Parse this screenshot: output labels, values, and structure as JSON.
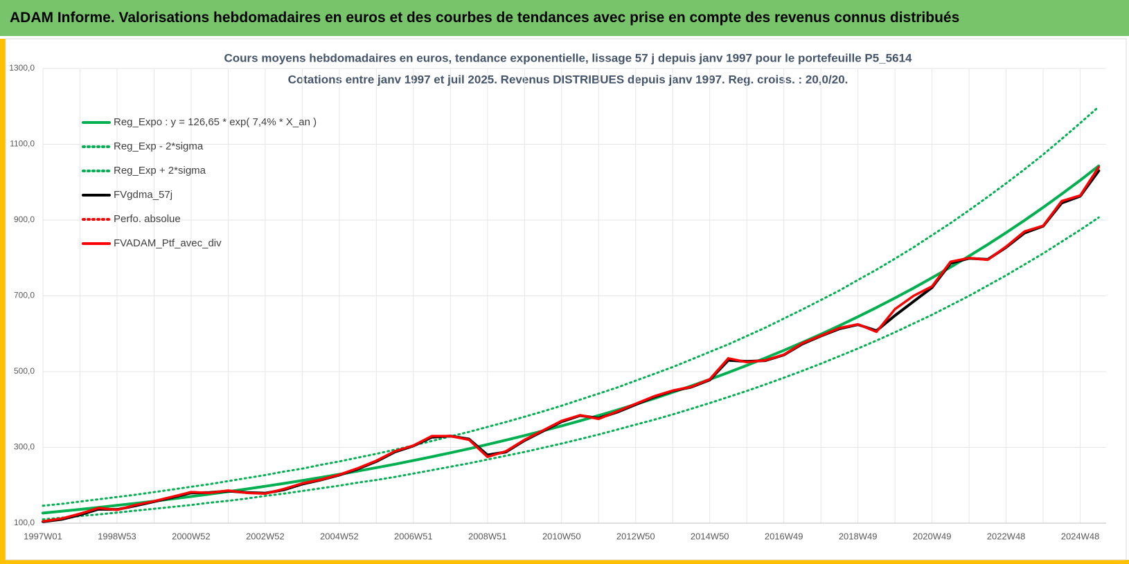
{
  "header": {
    "title": "ADAM Informe. Valorisations hebdomadaires en euros et des courbes de tendances avec prise en compte des revenus connus distribués"
  },
  "chart_data": {
    "type": "line",
    "title": "Cours moyens hebdomadaires  en euros, tendance exponentielle, lissage 57 j depuis janv 1997 pour le portefeuille P5_5614",
    "subtitle": "Cotations entre janv 1997 et juil 2025. Revenus DISTRIBUES depuis janv 1997. Reg. croiss. : 20,0/20.",
    "categories": [
      "1997W01",
      null,
      null,
      null,
      "1998W53",
      null,
      null,
      null,
      "2000W52",
      null,
      null,
      null,
      "2002W52",
      null,
      null,
      null,
      "2004W52",
      null,
      null,
      null,
      "2006W51",
      null,
      null,
      null,
      "2008W51",
      null,
      null,
      null,
      "2010W50",
      null,
      null,
      null,
      "2012W50",
      null,
      null,
      null,
      "2014W50",
      null,
      null,
      null,
      "2016W49",
      null,
      null,
      null,
      "2018W49",
      null,
      null,
      null,
      "2020W49",
      null,
      null,
      null,
      "2022W48",
      null,
      null,
      null,
      "2024W48",
      null
    ],
    "ylim": [
      100,
      1300
    ],
    "yticks": [
      {
        "value": 100,
        "label": "100,0"
      },
      {
        "value": 300,
        "label": "300,0"
      },
      {
        "value": 500,
        "label": "500,0"
      },
      {
        "value": 700,
        "label": "700,0"
      },
      {
        "value": 900,
        "label": "900,0"
      },
      {
        "value": 1100,
        "label": "1100,0"
      },
      {
        "value": 1300,
        "label": "1300,0"
      }
    ],
    "grid": true,
    "legend": "upper left",
    "series": [
      {
        "name": "Reg_Expo : y = 126,65 * exp( 7,4% *  X_an )",
        "color": "#00b050",
        "style": "solid",
        "values": [
          126.7,
          131.4,
          136.4,
          141.5,
          146.9,
          152.4,
          158.1,
          164.1,
          170.3,
          176.7,
          183.3,
          190.2,
          197.4,
          204.8,
          212.6,
          220.6,
          228.9,
          237.5,
          246.5,
          255.7,
          265.4,
          275.4,
          285.8,
          296.5,
          307.7,
          319.3,
          331.3,
          343.8,
          356.8,
          370.2,
          384.2,
          398.6,
          413.7,
          429.2,
          445.4,
          462.2,
          479.6,
          497.7,
          516.4,
          535.9,
          556.1,
          577.0,
          598.8,
          621.3,
          644.8,
          669.1,
          694.3,
          720.4,
          747.6,
          775.8,
          805.0,
          835.3,
          866.8,
          899.5,
          933.4,
          968.6,
          1005.1,
          1043.0
        ]
      },
      {
        "name": "Reg_Exp - 2*sigma",
        "color": "#00b050",
        "style": "dotted",
        "values": [
          110,
          114,
          119,
          123,
          128,
          133,
          138,
          143,
          148,
          154,
          159,
          165,
          172,
          178,
          185,
          192,
          199,
          207,
          214,
          222,
          231,
          240,
          249,
          258,
          268,
          278,
          288,
          299,
          310,
          322,
          334,
          347,
          360,
          373,
          387,
          402,
          417,
          433,
          449,
          466,
          484,
          502,
          521,
          541,
          561,
          582,
          604,
          627,
          650,
          675,
          700,
          727,
          754,
          783,
          812,
          843,
          874,
          907
        ]
      },
      {
        "name": "Reg_Exp + 2*sigma",
        "color": "#00b050",
        "style": "dotted",
        "values": [
          146,
          151,
          157,
          163,
          169,
          175,
          182,
          189,
          196,
          203,
          211,
          219,
          227,
          236,
          244,
          254,
          263,
          273,
          283,
          294,
          305,
          317,
          329,
          341,
          354,
          367,
          381,
          395,
          410,
          426,
          442,
          458,
          476,
          494,
          512,
          532,
          552,
          572,
          594,
          616,
          640,
          664,
          689,
          714,
          742,
          769,
          798,
          828,
          860,
          892,
          926,
          961,
          997,
          1034,
          1073,
          1114,
          1156,
          1199
        ]
      },
      {
        "name": "FVgdma_57j",
        "color": "#000000",
        "style": "solid",
        "values": [
          104,
          110,
          122,
          137,
          136,
          146,
          157,
          168,
          180,
          181,
          185,
          181,
          179,
          188,
          203,
          214,
          227,
          243,
          263,
          288,
          304,
          327,
          330,
          322,
          280,
          288,
          318,
          343,
          368,
          384,
          377,
          393,
          413,
          433,
          449,
          459,
          478,
          530,
          527,
          529,
          544,
          573,
          594,
          613,
          624,
          608,
          648,
          685,
          722,
          786,
          799,
          796,
          828,
          866,
          884,
          945,
          963,
          1030
        ]
      },
      {
        "name": "Perfo. absolue",
        "color": "#ff0000",
        "style": "dotted",
        "values": [
          105,
          112,
          125,
          140,
          135,
          148,
          158,
          170,
          182,
          180,
          186,
          180,
          178,
          190,
          205,
          215,
          228,
          245,
          265,
          290,
          305,
          330,
          330,
          320,
          275,
          290,
          320,
          345,
          370,
          385,
          375,
          395,
          415,
          435,
          450,
          460,
          480,
          535,
          525,
          530,
          545,
          575,
          595,
          615,
          625,
          605,
          665,
          700,
          725,
          790,
          800,
          795,
          830,
          870,
          885,
          950,
          965,
          1040
        ]
      },
      {
        "name": "FVADAM_Ptf_avec_div",
        "color": "#ff0000",
        "style": "solid",
        "values": [
          105,
          112,
          125,
          140,
          135,
          148,
          158,
          170,
          182,
          180,
          186,
          180,
          178,
          190,
          205,
          215,
          228,
          245,
          265,
          290,
          305,
          330,
          330,
          320,
          275,
          290,
          320,
          345,
          370,
          385,
          375,
          395,
          415,
          435,
          450,
          460,
          480,
          535,
          525,
          530,
          545,
          575,
          595,
          615,
          625,
          605,
          665,
          700,
          725,
          790,
          800,
          795,
          830,
          870,
          885,
          950,
          965,
          1040
        ]
      }
    ]
  }
}
